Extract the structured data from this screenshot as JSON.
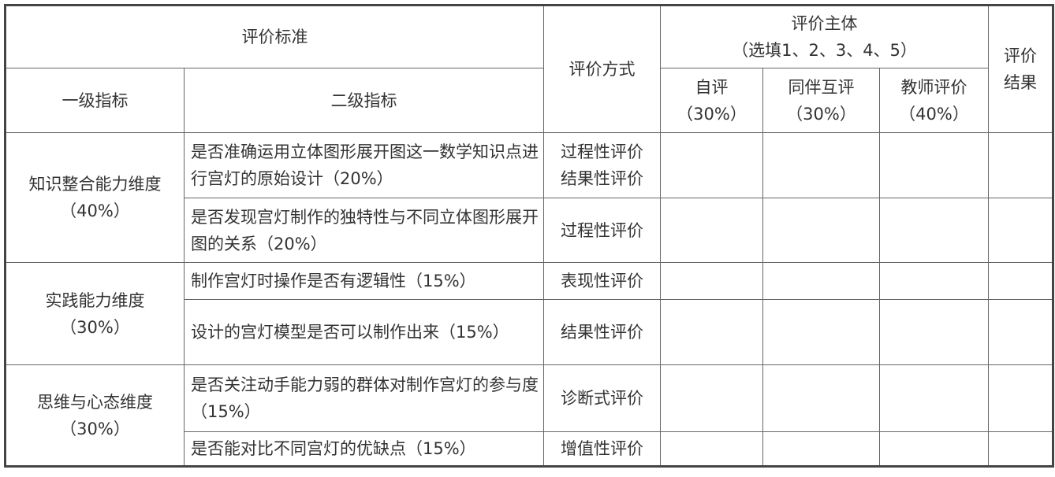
{
  "header": {
    "criteria": "评价标准",
    "level1": "一级指标",
    "level2": "二级指标",
    "method": "评价方式",
    "subject": "评价主体",
    "subject_note": "（选填1、2、3、4、5）",
    "self": "自评",
    "self_weight": "（30%）",
    "peer": "同伴互评",
    "peer_weight": "（30%）",
    "teacher": "教师评价",
    "teacher_weight": "（40%）",
    "result_line1": "评价",
    "result_line2": "结果"
  },
  "groups": [
    {
      "name": "知识整合能力维度",
      "weight": "（40%）"
    },
    {
      "name": "实践能力维度",
      "weight": "（30%）"
    },
    {
      "name": "思维与心态维度",
      "weight": "（30%）"
    }
  ],
  "rows": [
    {
      "indicator": "是否准确运用立体图形展开图这一数学知识点进行宫灯的原始设计（20%）",
      "method1": "过程性评价",
      "method2": "结果性评价"
    },
    {
      "indicator": "是否发现宫灯制作的独特性与不同立体图形展开图的关系（20%）",
      "method1": "过程性评价"
    },
    {
      "indicator": "制作宫灯时操作是否有逻辑性（15%）",
      "method1": "表现性评价"
    },
    {
      "indicator": "设计的宫灯模型是否可以制作出来（15%）",
      "method1": "结果性评价"
    },
    {
      "indicator": "是否关注动手能力弱的群体对制作宫灯的参与度（15%）",
      "method1": "诊断式评价"
    },
    {
      "indicator": "是否能对比不同宫灯的优缺点（15%）",
      "method1": "增值性评价"
    }
  ]
}
